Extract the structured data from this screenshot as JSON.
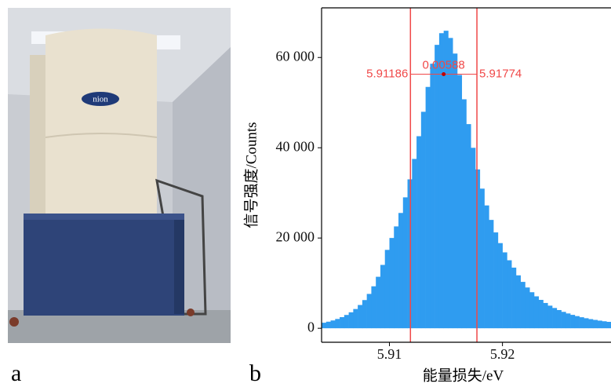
{
  "panel_labels": [
    "a",
    "b"
  ],
  "photo_logo": "nion",
  "chart_data": {
    "type": "histogram",
    "xlabel": "能量损失/eV",
    "ylabel": "信号强度/Counts",
    "color": "#2f9cf0",
    "bins": [
      5.904,
      5.9044,
      5.9048,
      5.9052,
      5.9056,
      5.906,
      5.9064,
      5.9068,
      5.9072,
      5.9076,
      5.908,
      5.9084,
      5.9088,
      5.9092,
      5.9096,
      5.91,
      5.9104,
      5.9108,
      5.9112,
      5.9116,
      5.912,
      5.9124,
      5.9128,
      5.9132,
      5.9136,
      5.914,
      5.9144,
      5.9148,
      5.9152,
      5.9156,
      5.916,
      5.9164,
      5.9168,
      5.9172,
      5.9176,
      5.918,
      5.9184,
      5.9188,
      5.9192,
      5.9196,
      5.92,
      5.9204,
      5.9208,
      5.9212,
      5.9216,
      5.922,
      5.9224,
      5.9228,
      5.9232,
      5.9236,
      5.924,
      5.9244,
      5.9248,
      5.9252,
      5.9256,
      5.926,
      5.9264,
      5.9268,
      5.9272,
      5.9276,
      5.928,
      5.9284,
      5.9288,
      5.9292,
      5.9296
    ],
    "values": [
      1229,
      1458,
      1731,
      2063,
      2463,
      2949,
      3539,
      4268,
      5157,
      6249,
      7612,
      9300,
      11410,
      14040,
      17370,
      20010,
      22570,
      25550,
      29010,
      33000,
      37520,
      42560,
      47970,
      53480,
      58620,
      62800,
      65390,
      65930,
      64330,
      60870,
      56130,
      50740,
      45240,
      39990,
      35200,
      30940,
      27220,
      24010,
      21240,
      18870,
      16820,
      15070,
      13440,
      11730,
      10280,
      9040,
      7990,
      7077,
      6290,
      5606,
      5010,
      4495,
      4038,
      3636,
      3285,
      2970,
      2694,
      2447,
      2226,
      2028,
      1853,
      1694,
      1552,
      1422
    ],
    "xlim": [
      5.904,
      5.9296
    ],
    "ylim": [
      -3100,
      71000
    ],
    "xticks": [
      5.91,
      5.92
    ],
    "yticks": [
      0,
      {
        "value": 20000,
        "label": "20 000"
      },
      {
        "value": 40000,
        "label": "40 000"
      },
      {
        "value": 60000,
        "label": "60 000"
      }
    ],
    "fwhm": {
      "left": 5.91186,
      "right": 5.91774,
      "width": 0.00588,
      "level": 56300,
      "color": "#f04848"
    }
  }
}
